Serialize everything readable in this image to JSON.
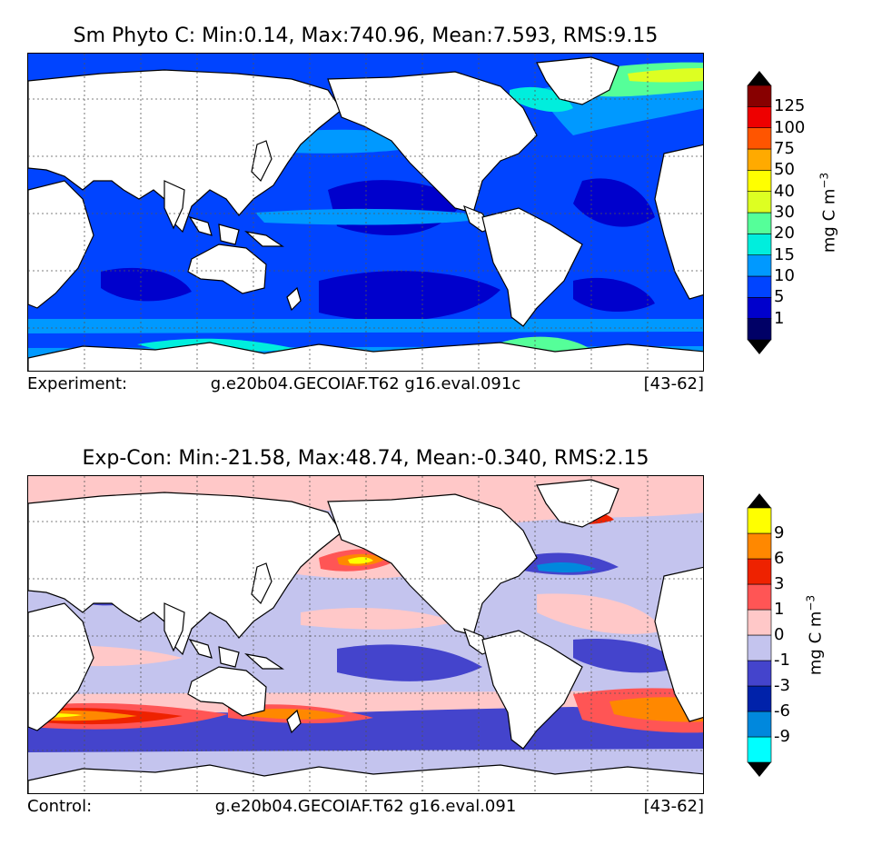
{
  "panels": [
    {
      "title": "Sm Phyto C: Min:0.14, Max:740.96, Mean:7.593, RMS:9.15",
      "footer_label": "Experiment:",
      "footer_case": "g.e20b04.GECOIAF.T62 g16.eval.091c",
      "footer_years": "[43-62]",
      "colorbar": {
        "unit": "mg C m",
        "unit_sup": "−3",
        "levels": [
          "1",
          "5",
          "10",
          "15",
          "20",
          "30",
          "40",
          "50",
          "75",
          "100",
          "125"
        ],
        "colors": [
          "#000066",
          "#0000cc",
          "#0044ff",
          "#0099ff",
          "#00eedd",
          "#55ff99",
          "#ddff22",
          "#ffff00",
          "#ffaa00",
          "#ff5500",
          "#ee0000",
          "#880000"
        ],
        "under": "#000000",
        "over": "#000000"
      }
    },
    {
      "title": "Exp-Con: Min:-21.58, Max:48.74, Mean:-0.340, RMS:2.15",
      "footer_label": "Control:",
      "footer_case": "g.e20b04.GECOIAF.T62 g16.eval.091",
      "footer_years": "[43-62]",
      "colorbar": {
        "unit": "mg C m",
        "unit_sup": "−3",
        "levels": [
          "-9",
          "-6",
          "-3",
          "-1",
          "0",
          "1",
          "3",
          "6",
          "9"
        ],
        "colors": [
          "#00ffff",
          "#0088dd",
          "#0022aa",
          "#4444cc",
          "#c4c4ee",
          "#ffc8c8",
          "#ff5555",
          "#ee2200",
          "#ff8800",
          "#ffff00"
        ],
        "under": "#000000",
        "over": "#000000"
      }
    }
  ]
}
